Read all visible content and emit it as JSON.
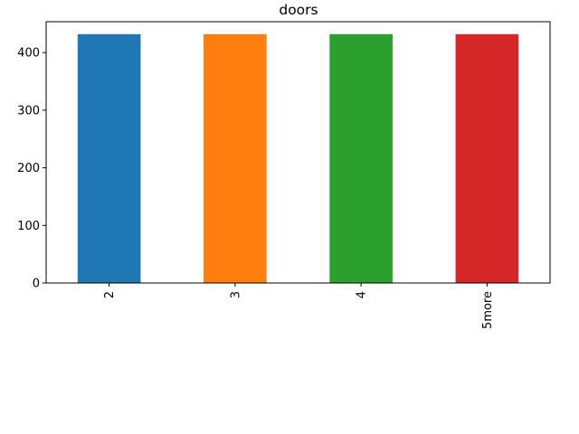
{
  "chart_data": {
    "type": "bar",
    "title": "doors",
    "xlabel": "",
    "ylabel": "",
    "categories": [
      "2",
      "3",
      "4",
      "5more"
    ],
    "values": [
      432,
      432,
      432,
      432
    ],
    "colors": [
      "#1f77b4",
      "#ff7f0e",
      "#2ca02c",
      "#d62728"
    ],
    "ylim": [
      0,
      453.6
    ],
    "yticks": [
      0,
      100,
      200,
      300,
      400
    ],
    "ytick_labels": [
      "0",
      "100",
      "200",
      "300",
      "400"
    ],
    "xtick_rotation": "vertical",
    "grid": false,
    "legend": "none"
  }
}
